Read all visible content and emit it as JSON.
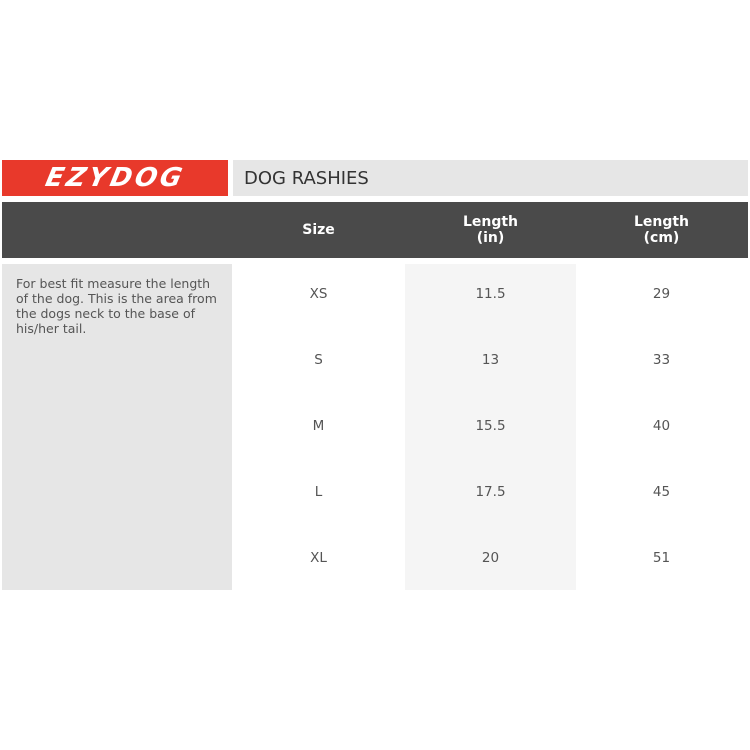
{
  "brand": {
    "logo_text": "EZYDOG",
    "accent": "#e8392b"
  },
  "title": "DOG RASHIES",
  "table": {
    "headers": [
      "Size",
      "Length\n(in)",
      "Length\n(cm)"
    ],
    "description": "For best fit measure the length of the dog. This is the area from the dogs neck to the base of his/her tail.",
    "rows": [
      [
        "XS",
        "11.5",
        "29"
      ],
      [
        "S",
        "13",
        "33"
      ],
      [
        "M",
        "15.5",
        "40"
      ],
      [
        "L",
        "17.5",
        "45"
      ],
      [
        "XL",
        "20",
        "51"
      ]
    ]
  }
}
